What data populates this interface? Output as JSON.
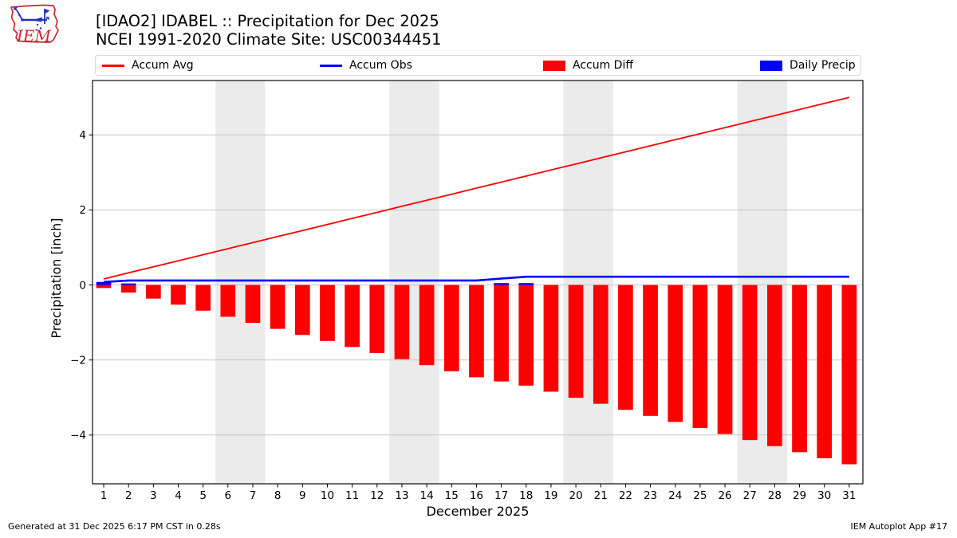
{
  "header": {
    "title_line1": "[IDAO2] IDABEL :: Precipitation for Dec 2025",
    "title_line2": "NCEI 1991-2020 Climate Site: USC00344451",
    "logo_text": "IEM"
  },
  "legend": {
    "items": [
      {
        "label": "Accum Avg",
        "type": "line",
        "color": "#ff0000"
      },
      {
        "label": "Accum Obs",
        "type": "line",
        "color": "#0000ff"
      },
      {
        "label": "Accum Diff",
        "type": "patch",
        "color": "#ff0000"
      },
      {
        "label": "Daily Precip",
        "type": "patch",
        "color": "#0000ff"
      }
    ]
  },
  "footer": {
    "left": "Generated at 31 Dec 2025 6:17 PM CST in 0.28s",
    "right": "IEM Autoplot App #17"
  },
  "chart_data": {
    "type": "bar",
    "x": [
      1,
      2,
      3,
      4,
      5,
      6,
      7,
      8,
      9,
      10,
      11,
      12,
      13,
      14,
      15,
      16,
      17,
      18,
      19,
      20,
      21,
      22,
      23,
      24,
      25,
      26,
      27,
      28,
      29,
      30,
      31
    ],
    "series": [
      {
        "name": "Accum Avg",
        "type": "line",
        "color": "#ff0000",
        "values": [
          0.161,
          0.323,
          0.484,
          0.645,
          0.806,
          0.968,
          1.129,
          1.29,
          1.452,
          1.613,
          1.774,
          1.935,
          2.097,
          2.258,
          2.419,
          2.581,
          2.742,
          2.903,
          3.065,
          3.226,
          3.387,
          3.548,
          3.71,
          3.871,
          4.032,
          4.194,
          4.355,
          4.516,
          4.677,
          4.839,
          5.0
        ]
      },
      {
        "name": "Accum Obs",
        "type": "line",
        "color": "#0000ff",
        "values": [
          0.08,
          0.12,
          0.12,
          0.12,
          0.12,
          0.12,
          0.12,
          0.12,
          0.12,
          0.12,
          0.12,
          0.12,
          0.12,
          0.12,
          0.12,
          0.12,
          0.17,
          0.22,
          0.22,
          0.22,
          0.22,
          0.22,
          0.22,
          0.22,
          0.22,
          0.22,
          0.22,
          0.22,
          0.22,
          0.22,
          0.22
        ]
      },
      {
        "name": "Accum Diff",
        "type": "bar",
        "color": "#ff0000",
        "values": [
          -0.081,
          -0.203,
          -0.364,
          -0.525,
          -0.686,
          -0.848,
          -1.009,
          -1.17,
          -1.332,
          -1.493,
          -1.654,
          -1.815,
          -1.977,
          -2.138,
          -2.299,
          -2.461,
          -2.572,
          -2.683,
          -2.845,
          -3.006,
          -3.167,
          -3.328,
          -3.49,
          -3.651,
          -3.812,
          -3.974,
          -4.135,
          -4.296,
          -4.457,
          -4.619,
          -4.78
        ]
      },
      {
        "name": "Daily Precip",
        "type": "bar",
        "color": "#0000ff",
        "values": [
          0.08,
          0.04,
          0,
          0,
          0,
          0,
          0,
          0,
          0,
          0,
          0,
          0,
          0,
          0,
          0,
          0,
          0.05,
          0.05,
          0,
          0,
          0,
          0,
          0,
          0,
          0,
          0,
          0,
          0,
          0,
          0,
          0
        ]
      }
    ],
    "title": "[IDAO2] IDABEL :: Precipitation for Dec 2025",
    "xlabel": "December 2025",
    "ylabel": "Precipitation [inch]",
    "xlim": [
      0.55,
      31.55
    ],
    "ylim": [
      -5.3,
      5.45
    ],
    "yticks": [
      -4,
      -2,
      0,
      2,
      4
    ],
    "xticks": [
      1,
      2,
      3,
      4,
      5,
      6,
      7,
      8,
      9,
      10,
      11,
      12,
      13,
      14,
      15,
      16,
      17,
      18,
      19,
      20,
      21,
      22,
      23,
      24,
      25,
      26,
      27,
      28,
      29,
      30,
      31
    ],
    "weekend_bands": [
      [
        5.5,
        7.5
      ],
      [
        12.5,
        14.5
      ],
      [
        19.5,
        21.5
      ],
      [
        26.5,
        28.5
      ]
    ],
    "band_color": "#ebebeb",
    "grid_color": "#c4c4c4",
    "bar_width_days": 0.6,
    "legend_position": "top",
    "grid": "horizontal only"
  }
}
